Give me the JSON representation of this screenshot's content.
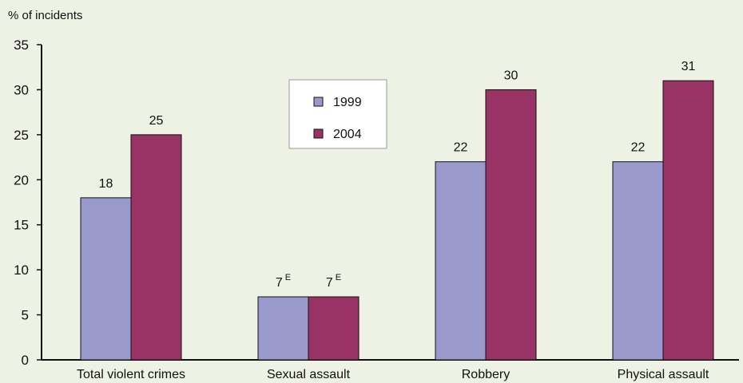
{
  "chart_data": {
    "type": "bar",
    "title": "",
    "xlabel": "",
    "ylabel": "% of incidents",
    "ylim": [
      0,
      35
    ],
    "yticks": [
      0,
      5,
      10,
      15,
      20,
      25,
      30,
      35
    ],
    "categories": [
      "Total violent crimes",
      "Sexual assault",
      "Robbery",
      "Physical assault"
    ],
    "series": [
      {
        "name": "1999",
        "color": "#9999cc",
        "values": [
          18,
          7,
          22,
          22
        ],
        "labels": [
          "18",
          "7",
          "22",
          "22"
        ],
        "superscripts": [
          "",
          "E",
          "",
          ""
        ]
      },
      {
        "name": "2004",
        "color": "#993366",
        "values": [
          25,
          7,
          30,
          31
        ],
        "labels": [
          "25",
          "7",
          "30",
          "31"
        ],
        "superscripts": [
          "",
          "E",
          "",
          ""
        ]
      }
    ],
    "legend": {
      "position": "top-center",
      "entries": [
        "1999",
        "2004"
      ]
    },
    "grid": false,
    "background": "#eef2e4"
  }
}
